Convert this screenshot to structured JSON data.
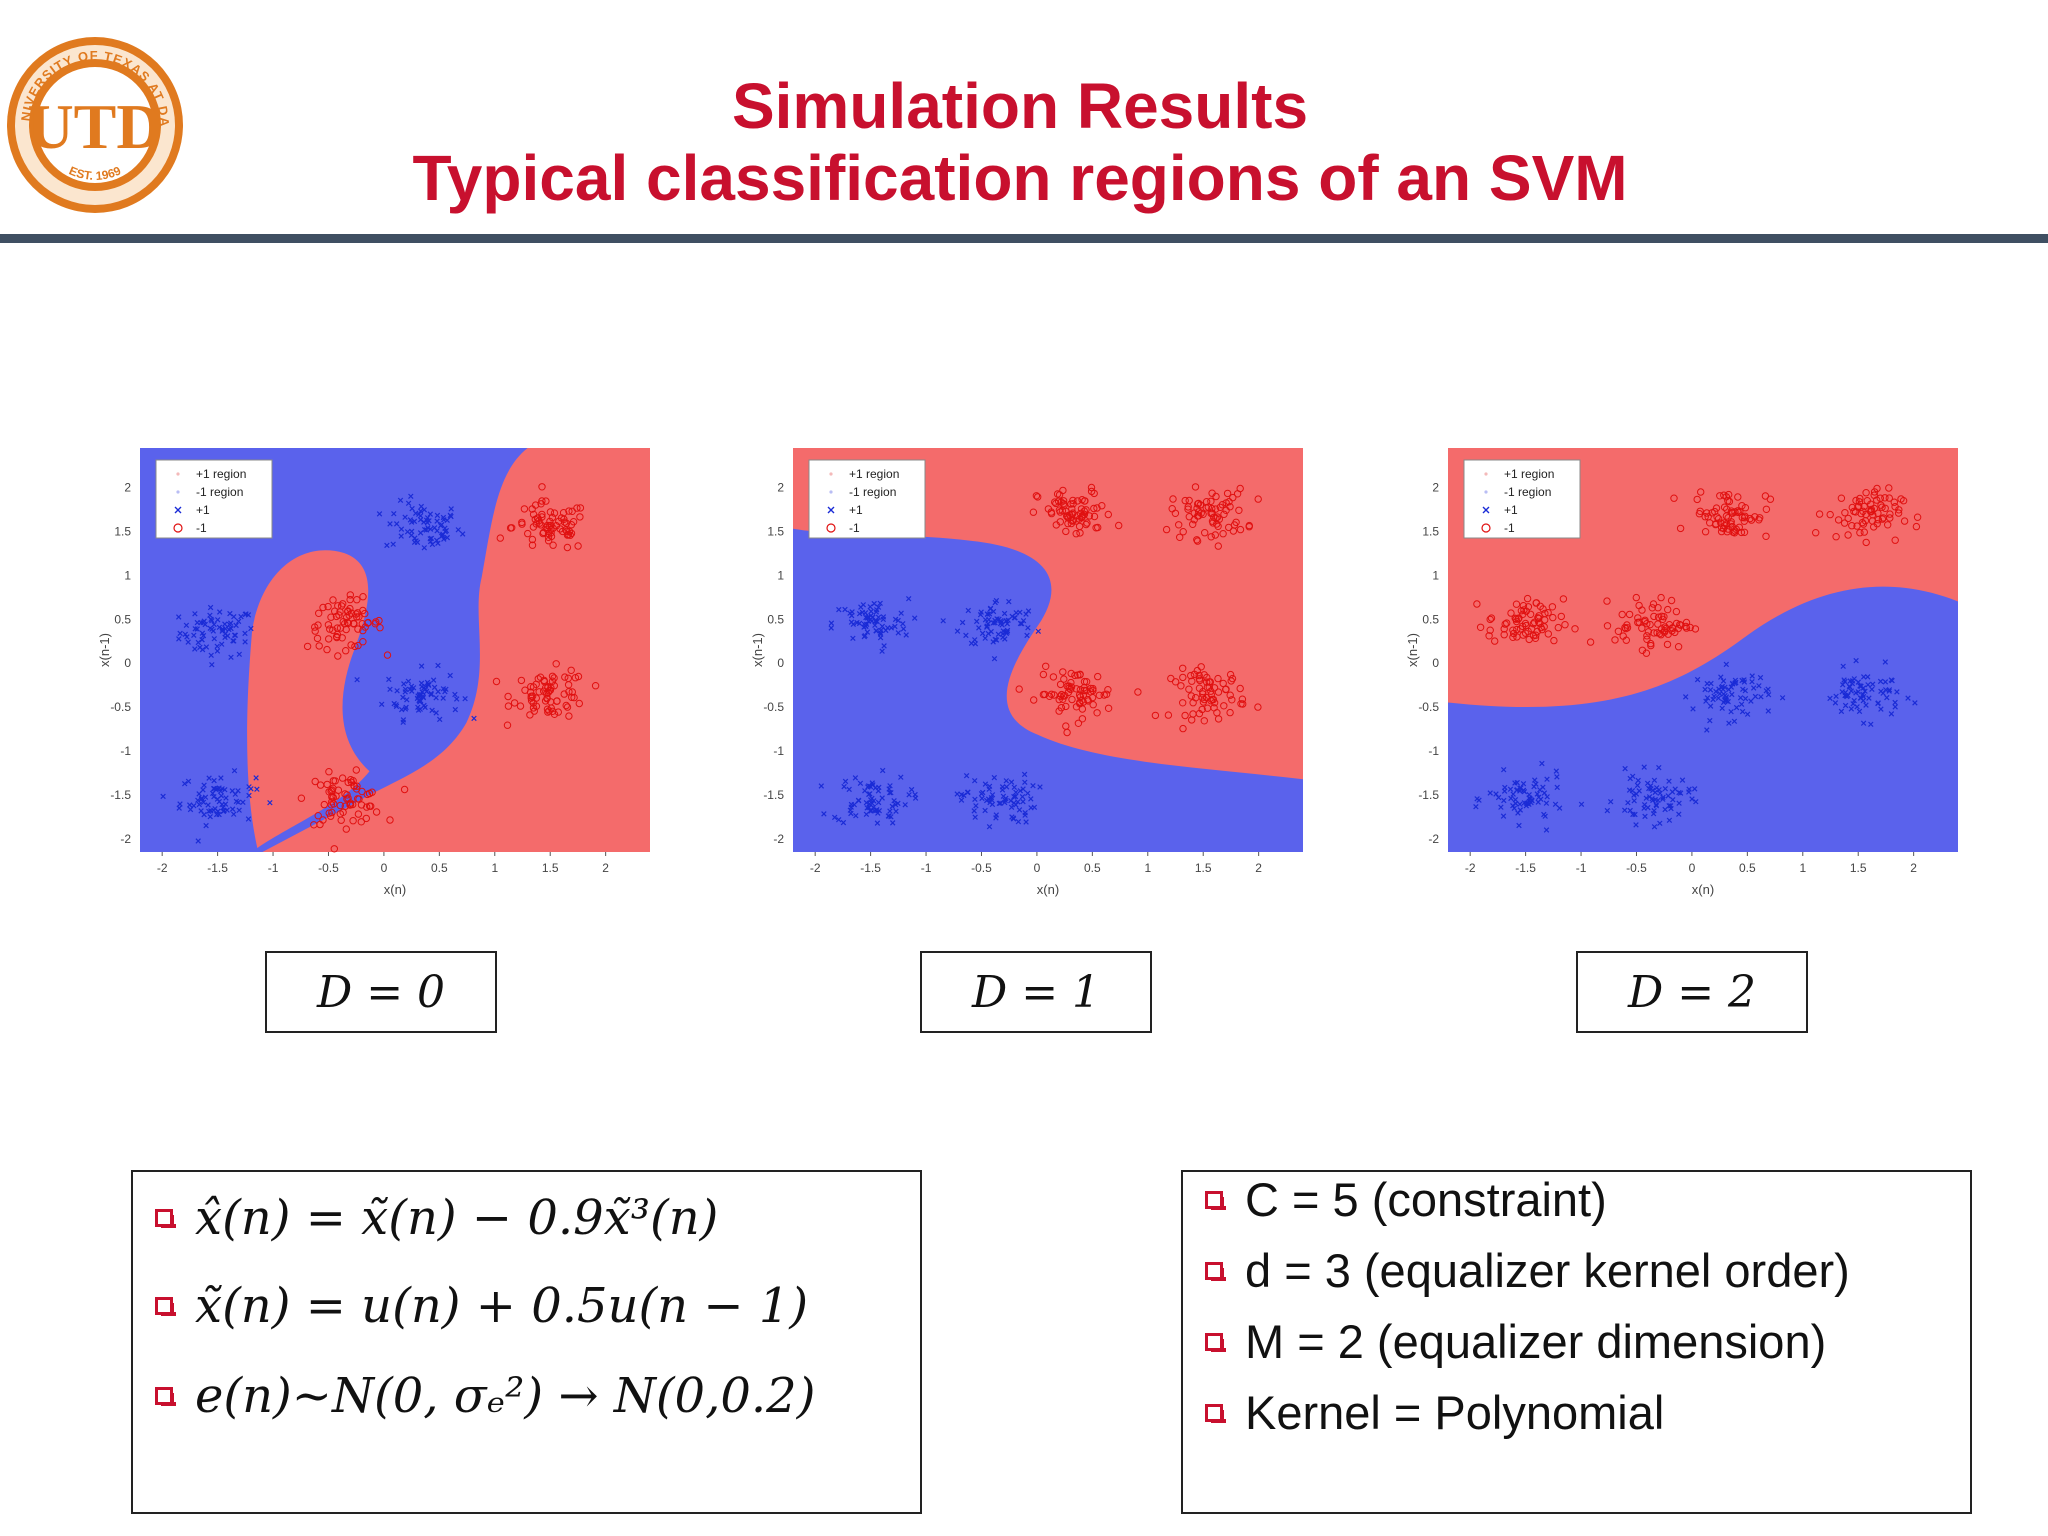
{
  "slide": {
    "title_line1": "Simulation Results",
    "title_line2": "Typical classification regions of an SVM"
  },
  "logo": {
    "ring_text": "THE UNIVERSITY OF TEXAS AT DALLAS",
    "monogram": "UTD",
    "established": "EST. 1969"
  },
  "colors": {
    "title": "#c8102e",
    "rule": "#3f4f62",
    "plus_region": "#5a62ec",
    "minus_region": "#f46b6b",
    "plus_marker": "#1a2bd6",
    "minus_marker": "#e01010",
    "logo": "#e07a1f"
  },
  "chart_data": [
    {
      "type": "scatter",
      "panel_label": "D = 0",
      "xlabel": "x(n)",
      "ylabel": "x(n-1)",
      "xlim": [
        -2.2,
        2.4
      ],
      "ylim": [
        -2.15,
        2.45
      ],
      "xticks": [
        "-2",
        "-1.5",
        "-1",
        "-0.5",
        "0",
        "0.5",
        "1",
        "1.5",
        "2"
      ],
      "yticks": [
        "-2",
        "-1.5",
        "-1",
        "-0.5",
        "0",
        "0.5",
        "1",
        "1.5",
        "2"
      ],
      "legend": [
        "+1 region",
        "-1 region",
        "+1",
        "-1"
      ],
      "legend_position": "top-left",
      "series": [
        {
          "name": "+1",
          "marker": "x",
          "centers": [
            [
              -1.5,
              0.35
            ],
            [
              0.35,
              1.55
            ],
            [
              0.35,
              -0.35
            ],
            [
              -1.5,
              -1.55
            ]
          ]
        },
        {
          "name": "-1",
          "marker": "o",
          "centers": [
            [
              -0.35,
              0.45
            ],
            [
              1.5,
              1.55
            ],
            [
              1.5,
              -0.35
            ],
            [
              -0.35,
              -1.55
            ]
          ]
        }
      ]
    },
    {
      "type": "scatter",
      "panel_label": "D = 1",
      "xlabel": "x(n)",
      "ylabel": "x(n-1)",
      "xlim": [
        -2.2,
        2.4
      ],
      "ylim": [
        -2.15,
        2.45
      ],
      "xticks": [
        "-2",
        "-1.5",
        "-1",
        "-0.5",
        "0",
        "0.5",
        "1",
        "1.5",
        "2"
      ],
      "yticks": [
        "-2",
        "-1.5",
        "-1",
        "-0.5",
        "0",
        "0.5",
        "1",
        "1.5",
        "2"
      ],
      "legend": [
        "+1 region",
        "-1 region",
        "+1",
        "-1"
      ],
      "legend_position": "top-left",
      "series": [
        {
          "name": "+1",
          "marker": "x",
          "centers": [
            [
              -1.5,
              0.45
            ],
            [
              -0.35,
              0.45
            ],
            [
              -1.5,
              -1.55
            ],
            [
              -0.35,
              -1.55
            ]
          ]
        },
        {
          "name": "-1",
          "marker": "o",
          "centers": [
            [
              0.35,
              1.7
            ],
            [
              1.55,
              1.7
            ],
            [
              0.35,
              -0.35
            ],
            [
              1.55,
              -0.35
            ]
          ]
        }
      ]
    },
    {
      "type": "scatter",
      "panel_label": "D = 2",
      "xlabel": "x(n)",
      "ylabel": "x(n-1)",
      "xlim": [
        -2.2,
        2.4
      ],
      "ylim": [
        -2.15,
        2.45
      ],
      "xticks": [
        "-2",
        "-1.5",
        "-1",
        "-0.5",
        "0",
        "0.5",
        "1",
        "1.5",
        "2"
      ],
      "yticks": [
        "-2",
        "-1.5",
        "-1",
        "-0.5",
        "0",
        "0.5",
        "1",
        "1.5",
        "2"
      ],
      "legend": [
        "+1 region",
        "-1 region",
        "+1",
        "-1"
      ],
      "legend_position": "top-left",
      "series": [
        {
          "name": "+1",
          "marker": "x",
          "centers": [
            [
              0.35,
              -0.35
            ],
            [
              1.55,
              -0.35
            ],
            [
              -1.5,
              -1.55
            ],
            [
              -0.35,
              -1.55
            ]
          ]
        },
        {
          "name": "-1",
          "marker": "o",
          "centers": [
            [
              0.35,
              1.7
            ],
            [
              1.55,
              1.7
            ],
            [
              -1.5,
              0.45
            ],
            [
              -0.35,
              0.45
            ]
          ]
        }
      ]
    }
  ],
  "equations": [
    "x̂(n) = x̃(n) − 0.9x̃³(n)",
    "x̃(n) = u(n) + 0.5u(n − 1)",
    "e(n)~N(0, σₑ²) → N(0,0.2)"
  ],
  "parameters": [
    "C = 5 (constraint)",
    "d = 3 (equalizer kernel order)",
    "M = 2 (equalizer dimension)",
    "Kernel = Polynomial"
  ]
}
